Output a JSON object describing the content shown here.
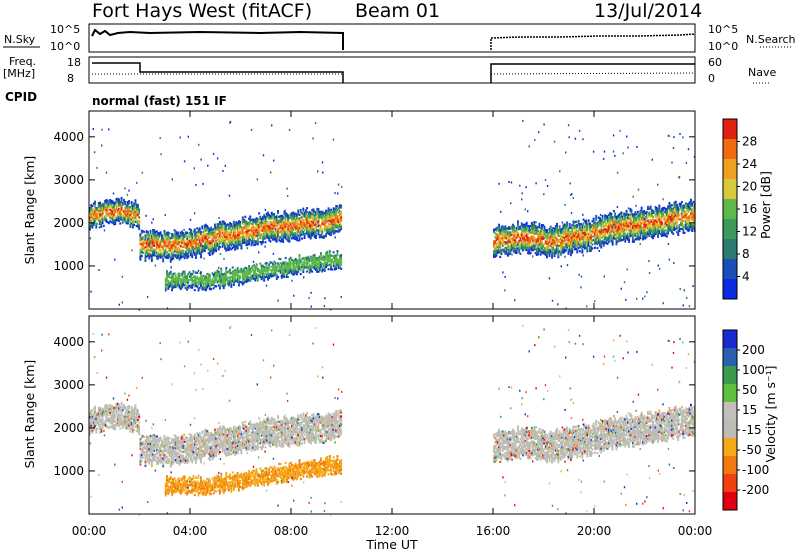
{
  "header": {
    "station": "Fort Hays West (fitACF)",
    "beam": "Beam 01",
    "date": "13/Jul/2014"
  },
  "panels": {
    "nsky_label": "N.Sky",
    "nsky_top": "10^5",
    "nsky_bottom": "10^0",
    "nsearch_label": "N.Search",
    "nsearch_top": "10^5",
    "nsearch_bottom": "10^0",
    "freq_label": "Freq.",
    "freq_unit": "[MHz]",
    "freq_top": "18",
    "freq_bottom": "8",
    "nave_label": "Nave",
    "nave_top": "60",
    "nave_bottom": "0",
    "cpid_label": "CPID",
    "cpid_value": "normal (fast) 151 IF"
  },
  "colors": {
    "power": [
      "#0a2be0",
      "#1a4fb8",
      "#2e7a6e",
      "#3d9a5a",
      "#5fb84a",
      "#d8c83a",
      "#f0a020",
      "#f06a10",
      "#e02010"
    ],
    "velocity": [
      "#e00010",
      "#f04010",
      "#f07a10",
      "#f5a818",
      "#bdbdb5",
      "#c0c0b8",
      "#5fc040",
      "#3a9a50",
      "#2a5fb0",
      "#1a2ad0"
    ]
  },
  "chart_data": [
    {
      "type": "heatmap",
      "name": "Power",
      "ylabel": "Slant Range [km]",
      "yticks": [
        "1000",
        "2000",
        "3000",
        "4000"
      ],
      "ylim": [
        0,
        4600
      ],
      "colorbar_label": "Power [dB]",
      "colorbar_ticks": [
        "4",
        "8",
        "12",
        "16",
        "20",
        "24",
        "28"
      ],
      "bands": [
        {
          "x0": 0.0,
          "x1": 2.0,
          "center": [
            2200,
            2250,
            2300,
            2200
          ],
          "half_width": 250
        },
        {
          "x0": 2.0,
          "x1": 10.0,
          "center": [
            1500,
            1500,
            1700,
            1900,
            2000,
            2100
          ],
          "half_width": 300
        },
        {
          "x0": 3.0,
          "x1": 10.0,
          "center": [
            700,
            700,
            800,
            950,
            1100,
            1200
          ],
          "half_width": 180
        },
        {
          "x0": 16.0,
          "x1": 24.0,
          "center": [
            1600,
            1700,
            1600,
            1700,
            1900,
            2000,
            2100,
            2200
          ],
          "half_width": 320
        }
      ]
    },
    {
      "type": "heatmap",
      "name": "Velocity",
      "ylabel": "Slant Range [km]",
      "yticks": [
        "1000",
        "2000",
        "3000",
        "4000"
      ],
      "ylim": [
        0,
        4600
      ],
      "colorbar_label": "Velocity [m s⁻¹]",
      "colorbar_ticks": [
        "200",
        "100",
        "50",
        "15",
        "-15",
        "-50",
        "-100",
        "-200"
      ],
      "xlabel": "Time UT",
      "xticks": [
        "00:00",
        "04:00",
        "08:00",
        "12:00",
        "16:00",
        "20:00",
        "00:00"
      ],
      "xlim": [
        0,
        24
      ]
    }
  ]
}
